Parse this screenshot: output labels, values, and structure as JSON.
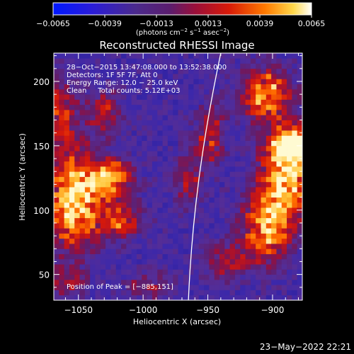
{
  "chart_data": {
    "type": "heatmap",
    "title": "Reconstructed RHESSI Image",
    "xlabel": "Heliocentric X (arcsec)",
    "ylabel": "Heliocentric Y (arcsec)",
    "xlim": [
      -1069,
      -877
    ],
    "ylim": [
      30,
      222
    ],
    "x_ticks": [
      -1050,
      -1000,
      -950,
      -900
    ],
    "x_tick_labels": [
      "−1050",
      "−1000",
      "−950",
      "−900"
    ],
    "y_ticks": [
      50,
      100,
      150,
      200
    ],
    "y_tick_labels": [
      "50",
      "100",
      "150",
      "200"
    ],
    "colorbar": {
      "range": [
        -0.0065,
        0.0065
      ],
      "ticks": [
        -0.0065,
        -0.0039,
        -0.0013,
        0.0013,
        0.0039,
        0.0065
      ],
      "tick_labels": [
        "−0.0065",
        "−0.0039",
        "−0.0013",
        "0.0013",
        "0.0039",
        "0.0065"
      ],
      "unit_text": "(photons cm",
      "unit_sup1": "−2",
      "unit_mid": " s",
      "unit_sup2": "−1",
      "unit_mid2": " asec",
      "unit_sup3": "−2",
      "unit_end": ")",
      "colormap": "rainbow-dark-blue-to-white (RHESSI std)"
    },
    "annotations": [
      "28−Oct−2015 13:47:08.000 to 13:52:38.000",
      "Detectors: 1F 5F 7F, Att 0",
      "Energy Range: 12.0 − 25.0 keV",
      "Clean     Total counts: 5.12E+03"
    ],
    "peak_label": "Position of Peak = [−885,151]",
    "peak": [
      -885,
      151
    ],
    "hot_regions": [
      {
        "x": -1053,
        "y": 108,
        "sx": 14,
        "sy": 26,
        "amp": 1.0
      },
      {
        "x": -1025,
        "y": 125,
        "sx": 12,
        "sy": 10,
        "amp": 0.85
      },
      {
        "x": -1018,
        "y": 92,
        "sx": 12,
        "sy": 10,
        "amp": 0.6
      },
      {
        "x": -1063,
        "y": 175,
        "sx": 8,
        "sy": 18,
        "amp": 0.55
      },
      {
        "x": -1030,
        "y": 175,
        "sx": 10,
        "sy": 12,
        "amp": 0.45
      },
      {
        "x": -965,
        "y": 125,
        "sx": 8,
        "sy": 14,
        "amp": 0.4
      },
      {
        "x": -948,
        "y": 158,
        "sx": 8,
        "sy": 16,
        "amp": 0.5
      },
      {
        "x": -905,
        "y": 190,
        "sx": 14,
        "sy": 14,
        "amp": 0.85
      },
      {
        "x": -890,
        "y": 125,
        "sx": 14,
        "sy": 22,
        "amp": 0.9
      },
      {
        "x": -905,
        "y": 85,
        "sx": 14,
        "sy": 18,
        "amp": 0.75
      },
      {
        "x": -885,
        "y": 151,
        "sx": 10,
        "sy": 10,
        "amp": 1.0
      },
      {
        "x": -935,
        "y": 60,
        "sx": 12,
        "sy": 10,
        "amp": 0.4
      },
      {
        "x": -1060,
        "y": 45,
        "sx": 10,
        "sy": 8,
        "amp": 0.4
      },
      {
        "x": -995,
        "y": 40,
        "sx": 14,
        "sy": 8,
        "amp": 0.35
      }
    ],
    "limb_curve": [
      [
        -965,
        30
      ],
      [
        -962,
        100
      ],
      [
        -953,
        160
      ],
      [
        -940,
        222
      ]
    ]
  },
  "footer_date": "23−May−2022 22:21",
  "colors": {
    "background": "#000000",
    "limb_line": "#ffffff",
    "text": "#ffffff"
  }
}
